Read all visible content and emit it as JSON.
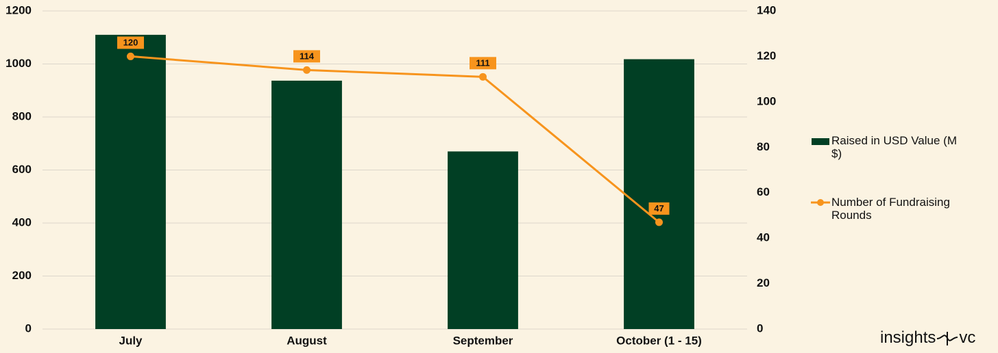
{
  "chart_data": {
    "type": "bar",
    "categories": [
      "July",
      "August",
      "September",
      "October (1 - 15)"
    ],
    "series": [
      {
        "name": "Raised in USD Value (M $)",
        "type": "bar",
        "color": "#013f24",
        "values": [
          1110,
          937,
          670,
          1018
        ]
      },
      {
        "name": "Number of Fundraising Rounds",
        "type": "line",
        "axis": "y2",
        "color": "#f7941d",
        "values": [
          120,
          114,
          111,
          47
        ],
        "value_labels": [
          "120",
          "114",
          "111",
          "47"
        ]
      }
    ],
    "ylim": [
      0,
      1200
    ],
    "yticks": [
      0,
      200,
      400,
      600,
      800,
      1000,
      1200
    ],
    "y2lim": [
      0,
      140
    ],
    "y2ticks": [
      0,
      20,
      40,
      60,
      80,
      100,
      120,
      140
    ],
    "grid": true,
    "legend": "right",
    "watermark": {
      "left": "insights",
      "right": "vc"
    }
  }
}
